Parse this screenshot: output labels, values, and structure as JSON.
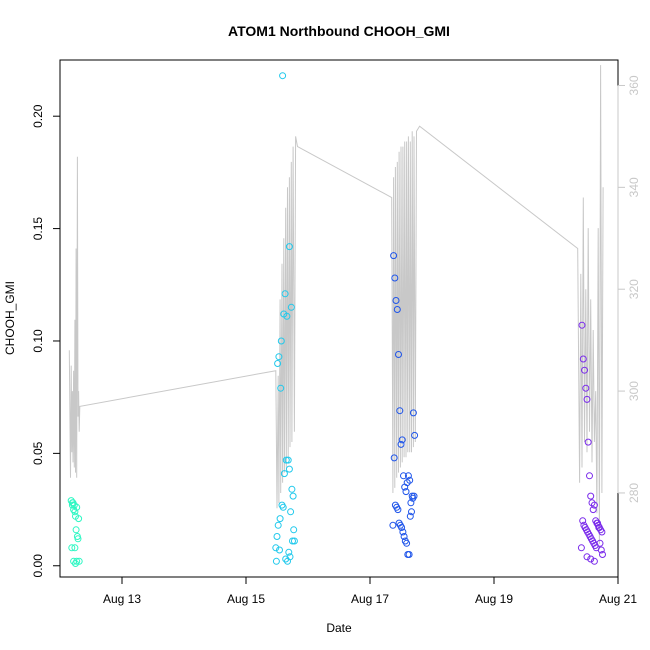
{
  "chart_data": {
    "type": "scatter",
    "title": "ATOM1 Northbound CHOOH_GMI",
    "xlabel": "Date",
    "ylabel": "CHOOH_GMI",
    "x_ticks": [
      {
        "day": 13,
        "label": "Aug 13"
      },
      {
        "day": 15,
        "label": "Aug 15"
      },
      {
        "day": 17,
        "label": "Aug 17"
      },
      {
        "day": 19,
        "label": "Aug 19"
      },
      {
        "day": 21,
        "label": "Aug 21"
      }
    ],
    "xlim": [
      12.0,
      21.0
    ],
    "ylim": [
      -0.005,
      0.225
    ],
    "y_ticks": [
      "0.00",
      "0.05",
      "0.10",
      "0.15",
      "0.20"
    ],
    "y2_ticks": [
      "280",
      "300",
      "320",
      "340",
      "360"
    ],
    "y2lim": [
      263.5,
      365
    ],
    "line_series_color": "#c8c8c8",
    "series": [
      {
        "color": "#2EF7C3",
        "x": [
          12.18,
          12.2,
          12.22,
          12.19,
          12.24,
          12.21,
          12.25,
          12.27,
          12.23,
          12.26,
          12.28,
          12.3,
          12.22,
          12.25,
          12.27,
          12.29,
          12.31,
          12.2,
          12.24
        ],
        "y": [
          0.029,
          0.027,
          0.025,
          0.008,
          0.008,
          0.028,
          0.022,
          0.026,
          0.027,
          0.016,
          0.013,
          0.021,
          0.002,
          0.001,
          0.002,
          0.012,
          0.002,
          0.028,
          0.024
        ]
      },
      {
        "color": "#21C9EC",
        "x": [
          15.48,
          15.5,
          15.52,
          15.55,
          15.58,
          15.6,
          15.62,
          15.65,
          15.68,
          15.7,
          15.72,
          15.74,
          15.76,
          15.78,
          15.7,
          15.73,
          15.66,
          15.63,
          15.57,
          15.53,
          15.51,
          15.56,
          15.59,
          15.61,
          15.64,
          15.67,
          15.69,
          15.71,
          15.75,
          15.77,
          15.54,
          15.49
        ],
        "y": [
          0.008,
          0.013,
          0.018,
          0.021,
          0.027,
          0.026,
          0.041,
          0.047,
          0.047,
          0.043,
          0.024,
          0.034,
          0.031,
          0.011,
          0.142,
          0.115,
          0.111,
          0.121,
          0.1,
          0.093,
          0.09,
          0.079,
          0.218,
          0.112,
          0.003,
          0.002,
          0.006,
          0.004,
          0.011,
          0.016,
          0.007,
          0.002
        ]
      },
      {
        "color": "#1F55EA",
        "x": [
          17.38,
          17.4,
          17.42,
          17.44,
          17.46,
          17.48,
          17.5,
          17.52,
          17.54,
          17.56,
          17.58,
          17.6,
          17.62,
          17.64,
          17.66,
          17.68,
          17.7,
          17.72,
          17.39,
          17.41,
          17.43,
          17.45,
          17.47,
          17.49,
          17.51,
          17.53,
          17.55,
          17.57,
          17.59,
          17.61,
          17.63,
          17.65,
          17.67,
          17.69,
          17.71,
          17.37
        ],
        "y": [
          0.138,
          0.128,
          0.118,
          0.114,
          0.094,
          0.069,
          0.054,
          0.056,
          0.04,
          0.035,
          0.033,
          0.037,
          0.04,
          0.038,
          0.028,
          0.031,
          0.068,
          0.058,
          0.048,
          0.027,
          0.026,
          0.025,
          0.019,
          0.018,
          0.017,
          0.015,
          0.013,
          0.011,
          0.01,
          0.005,
          0.005,
          0.022,
          0.024,
          0.03,
          0.031,
          0.018
        ]
      },
      {
        "color": "#7A2BEB",
        "x": [
          20.42,
          20.44,
          20.46,
          20.48,
          20.5,
          20.52,
          20.54,
          20.56,
          20.58,
          20.6,
          20.62,
          20.64,
          20.66,
          20.68,
          20.7,
          20.72,
          20.74,
          20.43,
          20.45,
          20.47,
          20.49,
          20.51,
          20.53,
          20.55,
          20.57,
          20.59,
          20.61,
          20.63,
          20.65,
          20.67,
          20.69,
          20.71,
          20.73,
          20.75,
          20.41,
          20.5,
          20.56,
          20.62
        ],
        "y": [
          0.107,
          0.092,
          0.087,
          0.079,
          0.074,
          0.055,
          0.04,
          0.031,
          0.028,
          0.025,
          0.027,
          0.02,
          0.019,
          0.018,
          0.017,
          0.016,
          0.015,
          0.02,
          0.018,
          0.017,
          0.016,
          0.015,
          0.014,
          0.013,
          0.012,
          0.011,
          0.01,
          0.009,
          0.008,
          0.019,
          0.017,
          0.01,
          0.007,
          0.005,
          0.008,
          0.004,
          0.003,
          0.002
        ]
      }
    ],
    "line_series": {
      "x": [
        12.15,
        12.17,
        12.18,
        12.19,
        12.2,
        12.21,
        12.22,
        12.23,
        12.24,
        12.25,
        12.26,
        12.27,
        12.28,
        12.29,
        12.3,
        12.31,
        12.32,
        15.48,
        15.5,
        15.52,
        15.53,
        15.55,
        15.56,
        15.58,
        15.59,
        15.61,
        15.62,
        15.64,
        15.65,
        15.67,
        15.68,
        15.7,
        15.71,
        15.73,
        15.74,
        15.76,
        15.78,
        15.8,
        15.83,
        17.35,
        17.37,
        17.38,
        17.4,
        17.41,
        17.43,
        17.44,
        17.46,
        17.47,
        17.49,
        17.5,
        17.52,
        17.53,
        17.55,
        17.56,
        17.58,
        17.59,
        17.61,
        17.62,
        17.64,
        17.65,
        17.67,
        17.68,
        17.7,
        17.71,
        17.73,
        17.75,
        17.8,
        20.35,
        20.38,
        20.4,
        20.42,
        20.44,
        20.46,
        20.48,
        20.5,
        20.52,
        20.54,
        20.56,
        20.58,
        20.6,
        20.62,
        20.64,
        20.66,
        20.68,
        20.7,
        20.72,
        20.74,
        20.76
      ],
      "y": [
        308,
        283,
        305,
        288,
        300,
        286,
        304,
        285,
        314,
        284,
        328,
        283,
        346,
        295,
        300,
        292,
        297,
        304,
        277,
        303,
        278,
        318,
        280,
        325,
        282,
        330,
        284,
        336,
        285,
        340,
        287,
        342,
        289,
        345,
        290,
        348,
        292,
        350,
        348,
        338,
        280,
        342,
        281,
        344,
        283,
        345,
        284,
        347,
        285,
        348,
        286,
        348,
        287,
        349,
        287,
        349,
        288,
        350,
        288,
        349,
        288,
        351,
        289,
        350,
        290,
        351,
        352,
        328,
        282,
        323,
        285,
        338,
        290,
        320,
        288,
        332,
        292,
        318,
        286,
        312,
        290,
        300,
        276,
        332,
        270,
        364,
        280,
        340
      ]
    }
  }
}
